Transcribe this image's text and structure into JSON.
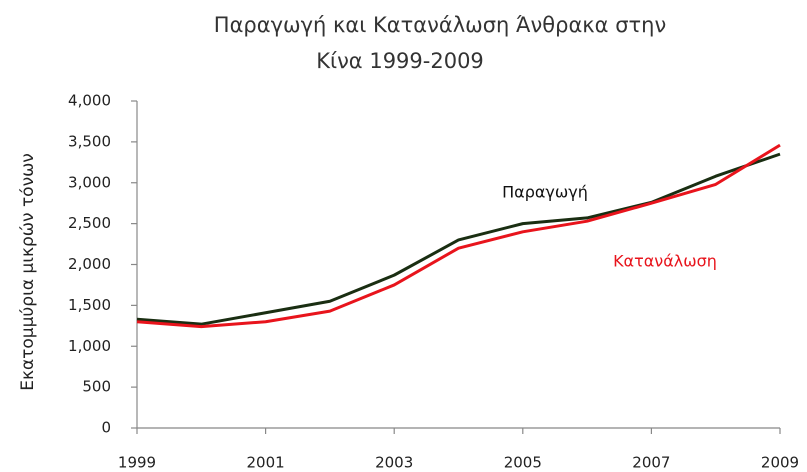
{
  "chart_data": {
    "type": "line",
    "title": [
      "Παραγωγή και Κατανάλωση Άνθρακα στην",
      "Κίνα 1999-2009"
    ],
    "y_label": "Εκατομμύρια μικρών τόνων",
    "x": [
      1999,
      2000,
      2001,
      2002,
      2003,
      2004,
      2005,
      2006,
      2007,
      2008,
      2009
    ],
    "series": [
      {
        "name": "Παραγωγή",
        "color": "#1a2e12",
        "values": [
          1330,
          1270,
          1410,
          1550,
          1870,
          2300,
          2500,
          2570,
          2760,
          3080,
          3350
        ]
      },
      {
        "name": "Κατανάλωση",
        "color": "#e8141c",
        "values": [
          1300,
          1240,
          1300,
          1430,
          1750,
          2200,
          2400,
          2530,
          2750,
          2980,
          3460
        ]
      }
    ],
    "xlim": [
      1999,
      2009
    ],
    "xticks": [
      1999,
      2001,
      2003,
      2005,
      2007,
      2009
    ],
    "ylim": [
      0,
      4000
    ],
    "yticks": [
      0,
      500,
      {
        "value": 1000,
        "label": "1,000"
      },
      {
        "value": 1500,
        "label": "1,500"
      },
      {
        "value": 2000,
        "label": "2,000"
      },
      {
        "value": 2500,
        "label": "2,500"
      },
      {
        "value": 3000,
        "label": "3,000"
      },
      {
        "value": 3500,
        "label": "3,500"
      },
      {
        "value": 4000,
        "label": "4,000"
      }
    ],
    "grid": false
  }
}
